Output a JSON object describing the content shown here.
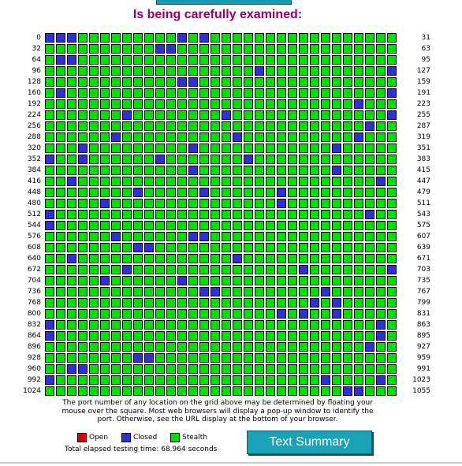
{
  "heading": "Is being carefully examined:",
  "grid": {
    "rows": 33,
    "cols": 32,
    "row_start_labels": [
      "0",
      "32",
      "64",
      "96",
      "128",
      "160",
      "192",
      "224",
      "256",
      "288",
      "320",
      "352",
      "384",
      "416",
      "448",
      "480",
      "512",
      "544",
      "576",
      "608",
      "640",
      "672",
      "704",
      "736",
      "768",
      "800",
      "832",
      "864",
      "896",
      "928",
      "960",
      "992",
      "1024"
    ],
    "row_end_labels": [
      "31",
      "63",
      "95",
      "127",
      "159",
      "191",
      "223",
      "255",
      "287",
      "319",
      "351",
      "383",
      "415",
      "447",
      "479",
      "511",
      "543",
      "575",
      "607",
      "639",
      "671",
      "703",
      "735",
      "767",
      "799",
      "831",
      "863",
      "895",
      "927",
      "959",
      "991",
      "1023",
      "1055"
    ],
    "closed_ports": [
      0,
      1,
      2,
      12,
      14,
      42,
      43,
      65,
      66,
      115,
      127,
      140,
      141,
      161,
      191,
      220,
      255,
      231,
      240,
      285,
      294,
      305,
      316,
      323,
      333,
      346,
      352,
      355,
      362,
      370,
      397,
      410,
      418,
      446,
      456,
      462,
      469,
      485,
      501,
      512,
      541,
      544,
      582,
      589,
      590,
      616,
      617,
      642,
      657,
      679,
      695,
      703,
      709,
      716,
      750,
      751,
      761,
      792,
      794,
      821,
      823,
      826,
      832,
      862,
      864,
      894,
      925,
      936,
      937,
      962,
      963,
      992,
      1017,
      1022,
      1051,
      1052
    ],
    "open_ports": [],
    "colors": {
      "stealth": "#00e000",
      "closed": "#2f2fd8",
      "open": "#e00000"
    }
  },
  "explanation": "The port number of any location on the grid above may be determined by floating your mouse over the square. Most web browsers will display a pop-up window to identify the port. Otherwise, see the URL display at the bottom of your browser.",
  "legend": {
    "open": "Open",
    "closed": "Closed",
    "stealth": "Stealth"
  },
  "elapsed": "Total elapsed testing time: 68.964 seconds",
  "summary_button": "Text Summary"
}
